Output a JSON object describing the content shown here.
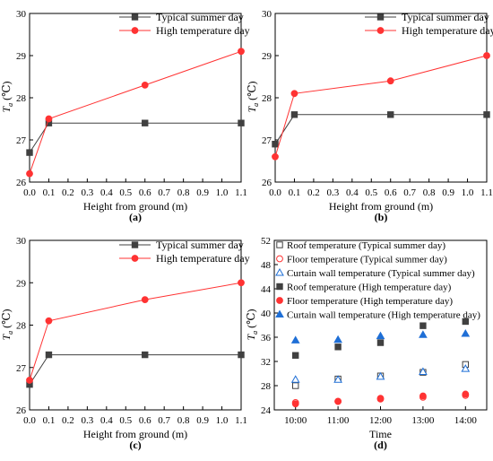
{
  "chart_data": [
    {
      "type": "line",
      "panel_label": "(a)",
      "xlabel": "Height from ground (m)",
      "ylabel_main": "T",
      "ylabel_sub": "a",
      "ylabel_unit": " (℃)",
      "xlim": [
        0.0,
        1.1
      ],
      "ylim": [
        26,
        30
      ],
      "xticks": [
        0.0,
        0.1,
        0.2,
        0.3,
        0.4,
        0.5,
        0.6,
        0.7,
        0.8,
        0.9,
        1.0,
        1.1
      ],
      "xtick_labels": [
        "0.0",
        "0.1",
        "0.2",
        "0.3",
        "0.4",
        "0.5",
        "0.6",
        "0.7",
        "0.8",
        "0.9",
        "1.0",
        "1.1"
      ],
      "yticks": [
        26,
        27,
        28,
        29,
        30
      ],
      "ytick_labels": [
        "26",
        "27",
        "28",
        "29",
        "30"
      ],
      "legend_position": "top-right",
      "series": [
        {
          "name": "Typical summer day",
          "color": "#404040",
          "marker": "square",
          "x": [
            0.0,
            0.1,
            0.6,
            1.1
          ],
          "y": [
            26.7,
            27.4,
            27.4,
            27.4
          ]
        },
        {
          "name": "High temperature day",
          "color": "#ff3333",
          "marker": "circle",
          "x": [
            0.0,
            0.1,
            0.6,
            1.1
          ],
          "y": [
            26.2,
            27.5,
            28.3,
            29.1
          ]
        }
      ]
    },
    {
      "type": "line",
      "panel_label": "(b)",
      "xlabel": "Height from ground (m)",
      "ylabel_main": "T",
      "ylabel_sub": "a",
      "ylabel_unit": " (℃)",
      "xlim": [
        0.0,
        1.1
      ],
      "ylim": [
        26,
        30
      ],
      "xticks": [
        0.0,
        0.1,
        0.2,
        0.3,
        0.4,
        0.5,
        0.6,
        0.7,
        0.8,
        0.9,
        1.0,
        1.1
      ],
      "xtick_labels": [
        "0.0",
        "0.1",
        "0.2",
        "0.3",
        "0.4",
        "0.5",
        "0.6",
        "0.7",
        "0.8",
        "0.9",
        "1.0",
        "1.1"
      ],
      "yticks": [
        26,
        27,
        28,
        29,
        30
      ],
      "ytick_labels": [
        "26",
        "27",
        "28",
        "29",
        "30"
      ],
      "legend_position": "top-right",
      "series": [
        {
          "name": "Typical summer day",
          "color": "#404040",
          "marker": "square",
          "x": [
            0.0,
            0.1,
            0.6,
            1.1
          ],
          "y": [
            26.9,
            27.6,
            27.6,
            27.6
          ]
        },
        {
          "name": "High temperature day",
          "color": "#ff3333",
          "marker": "circle",
          "x": [
            0.0,
            0.1,
            0.6,
            1.1
          ],
          "y": [
            26.6,
            28.1,
            28.4,
            29.0
          ]
        }
      ]
    },
    {
      "type": "line",
      "panel_label": "(c)",
      "xlabel": "Height from ground (m)",
      "ylabel_main": "T",
      "ylabel_sub": "a",
      "ylabel_unit": " (℃)",
      "xlim": [
        0.0,
        1.1
      ],
      "ylim": [
        26,
        30
      ],
      "xticks": [
        0.0,
        0.1,
        0.2,
        0.3,
        0.4,
        0.5,
        0.6,
        0.7,
        0.8,
        0.9,
        1.0,
        1.1
      ],
      "xtick_labels": [
        "0.0",
        "0.1",
        "0.2",
        "0.3",
        "0.4",
        "0.5",
        "0.6",
        "0.7",
        "0.8",
        "0.9",
        "1.0",
        "1.1"
      ],
      "yticks": [
        26,
        27,
        28,
        29,
        30
      ],
      "ytick_labels": [
        "26",
        "27",
        "28",
        "29",
        "30"
      ],
      "legend_position": "top-right",
      "series": [
        {
          "name": "Typical summer day",
          "color": "#404040",
          "marker": "square",
          "x": [
            0.0,
            0.1,
            0.6,
            1.1
          ],
          "y": [
            26.6,
            27.3,
            27.3,
            27.3
          ]
        },
        {
          "name": "High temperature day",
          "color": "#ff3333",
          "marker": "circle",
          "x": [
            0.0,
            0.1,
            0.6,
            1.1
          ],
          "y": [
            26.7,
            28.1,
            28.6,
            29.0
          ]
        }
      ]
    },
    {
      "type": "scatter",
      "panel_label": "(d)",
      "xlabel": "Time",
      "ylabel_main": "T",
      "ylabel_sub": "a",
      "ylabel_unit": " (℃)",
      "categories": [
        "10:00",
        "11:00",
        "12:00",
        "13:00",
        "14:00"
      ],
      "ylim": [
        24,
        52
      ],
      "yticks": [
        24,
        28,
        32,
        36,
        40,
        44,
        48,
        52
      ],
      "ytick_labels": [
        "24",
        "28",
        "32",
        "36",
        "40",
        "44",
        "48",
        "52"
      ],
      "legend_position": "top-right",
      "series": [
        {
          "name": "Roof temperature (Typical summer day)",
          "color": "#404040",
          "marker": "square-open",
          "values": [
            28.0,
            29.1,
            29.6,
            30.2,
            31.5
          ]
        },
        {
          "name": "Floor temperature  (Typical summer day)",
          "color": "#ff3333",
          "marker": "circle-open",
          "values": [
            25.2,
            25.4,
            25.8,
            26.1,
            26.4
          ]
        },
        {
          "name": "Curtain wall temperature (Typical summer day)",
          "color": "#1f6fd6",
          "marker": "triangle-open",
          "values": [
            29.0,
            29.0,
            29.5,
            30.3,
            30.8
          ]
        },
        {
          "name": "Roof temperature (High temperature day)",
          "color": "#404040",
          "marker": "square",
          "values": [
            33.0,
            34.4,
            35.1,
            37.9,
            38.6
          ]
        },
        {
          "name": "Floor temperature (High temperature day)",
          "color": "#ff3333",
          "marker": "circle",
          "values": [
            25.0,
            25.4,
            25.9,
            26.3,
            26.6
          ]
        },
        {
          "name": "Curtain wall temperature (High temperature day)",
          "color": "#1f6fd6",
          "marker": "triangle",
          "values": [
            35.5,
            35.6,
            36.2,
            36.4,
            36.6
          ]
        }
      ]
    }
  ]
}
